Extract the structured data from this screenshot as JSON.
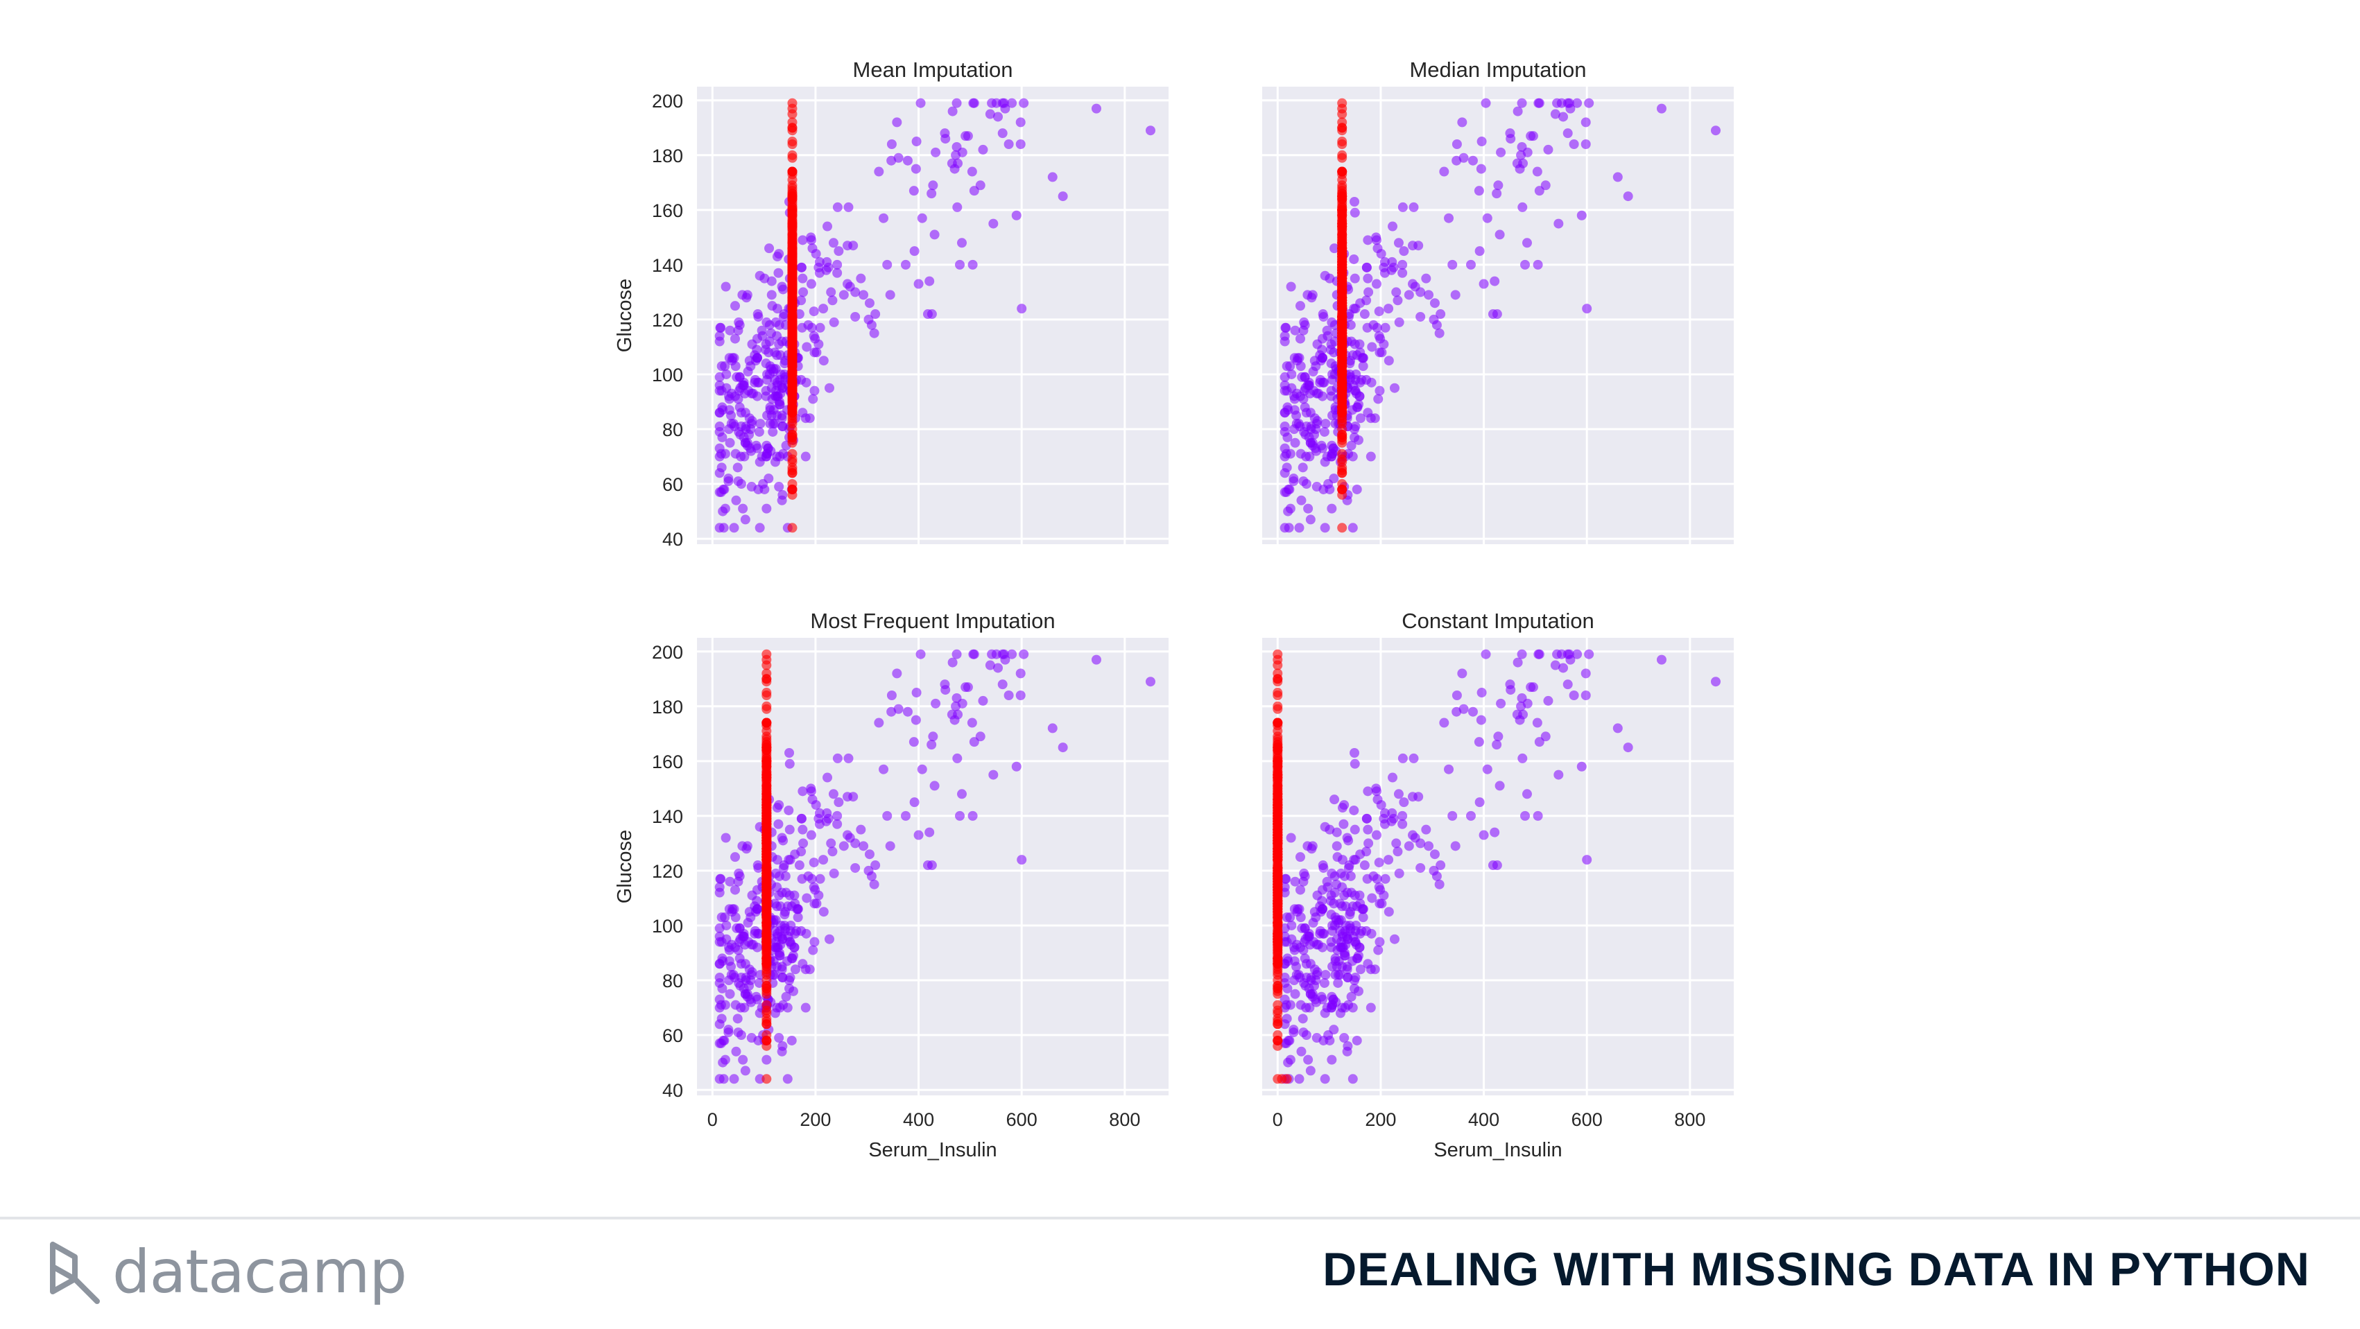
{
  "footer": {
    "brand": "datacamp",
    "course_title": "DEALING WITH MISSING DATA IN PYTHON"
  },
  "colors": {
    "observed": "#8000ff",
    "imputed": "#ff0000",
    "panel_bg": "#eaeaf2"
  },
  "chart_data": [
    {
      "type": "scatter",
      "title": "Mean Imputation",
      "ylabel": "Glucose",
      "xlabel": "",
      "xlim": [
        -30,
        885
      ],
      "ylim": [
        38,
        205
      ],
      "x_ticks": [
        0,
        200,
        400,
        600,
        800
      ],
      "y_ticks": [
        40,
        60,
        80,
        100,
        120,
        140,
        160,
        180,
        200
      ],
      "show_x_ticklabels": false,
      "show_y_ticklabels": true,
      "grid": true,
      "imputed_x": 155,
      "series": [
        {
          "points": []
        },
        {
          "points": []
        }
      ]
    },
    {
      "type": "scatter",
      "title": "Median Imputation",
      "ylabel": "",
      "xlabel": "",
      "xlim": [
        -30,
        885
      ],
      "ylim": [
        38,
        205
      ],
      "x_ticks": [
        0,
        200,
        400,
        600,
        800
      ],
      "y_ticks": [
        40,
        60,
        80,
        100,
        120,
        140,
        160,
        180,
        200
      ],
      "show_x_ticklabels": false,
      "show_y_ticklabels": false,
      "grid": true,
      "imputed_x": 125,
      "series": [
        {
          "points": []
        },
        {
          "points": []
        }
      ]
    },
    {
      "type": "scatter",
      "title": "Most Frequent Imputation",
      "ylabel": "Glucose",
      "xlabel": "Serum_Insulin",
      "xlim": [
        -30,
        885
      ],
      "ylim": [
        38,
        205
      ],
      "x_ticks": [
        0,
        200,
        400,
        600,
        800
      ],
      "y_ticks": [
        40,
        60,
        80,
        100,
        120,
        140,
        160,
        180,
        200
      ],
      "show_x_ticklabels": true,
      "show_y_ticklabels": true,
      "grid": true,
      "imputed_x": 105,
      "series": [
        {
          "points": []
        },
        {
          "points": []
        }
      ]
    },
    {
      "type": "scatter",
      "title": "Constant Imputation",
      "ylabel": "",
      "xlabel": "Serum_Insulin",
      "xlim": [
        -30,
        885
      ],
      "ylim": [
        38,
        205
      ],
      "x_ticks": [
        0,
        200,
        400,
        600,
        800
      ],
      "y_ticks": [
        40,
        60,
        80,
        100,
        120,
        140,
        160,
        180,
        200
      ],
      "show_x_ticklabels": true,
      "show_y_ticklabels": false,
      "grid": true,
      "imputed_x": 0,
      "series": [
        {
          "points": []
        },
        {
          "points": []
        }
      ]
    }
  ]
}
